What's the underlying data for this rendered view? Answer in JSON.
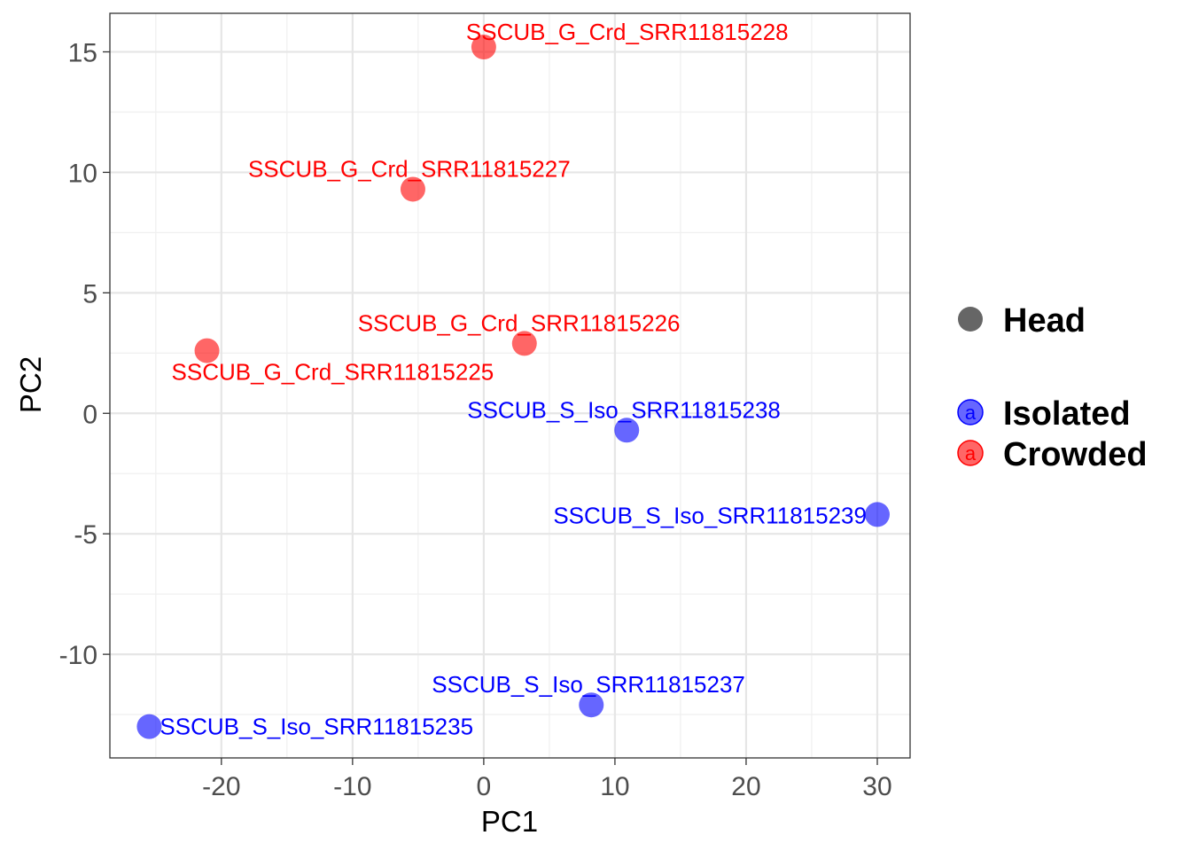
{
  "chart_data": {
    "type": "scatter",
    "xlabel": "PC1",
    "ylabel": "PC2",
    "xlim": [
      -28.5,
      32.5
    ],
    "ylim": [
      -14.3,
      16.6
    ],
    "x_ticks": [
      -20,
      -10,
      0,
      10,
      20,
      30
    ],
    "y_ticks": [
      -10,
      -5,
      0,
      5,
      10,
      15
    ],
    "x_tick_labels": [
      "-20",
      "-10",
      "0",
      "10",
      "20",
      "30"
    ],
    "y_tick_labels": [
      "-10",
      "-5",
      "0",
      "5",
      "10",
      "15"
    ],
    "grid": true,
    "legend_position": "right",
    "colors": {
      "Isolated": "#0000ff",
      "Crowded": "#ff0000",
      "Head": "#666666"
    },
    "legend": {
      "shape_title": "Head",
      "key_glyph": "a",
      "groups": [
        "Isolated",
        "Crowded"
      ]
    },
    "series": [
      {
        "name": "Crowded",
        "points": [
          {
            "label": "SSCUB_G_Crd_SRR11815228",
            "x": 0.0,
            "y": 15.2
          },
          {
            "label": "SSCUB_G_Crd_SRR11815227",
            "x": -5.4,
            "y": 9.3
          },
          {
            "label": "SSCUB_G_Crd_SRR11815226",
            "x": 3.1,
            "y": 2.9
          },
          {
            "label": "SSCUB_G_Crd_SRR11815225",
            "x": -21.1,
            "y": 2.6
          }
        ]
      },
      {
        "name": "Isolated",
        "points": [
          {
            "label": "SSCUB_S_Iso_SRR11815238",
            "x": 10.9,
            "y": -0.7
          },
          {
            "label": "SSCUB_S_Iso_SRR11815239",
            "x": 30.0,
            "y": -4.2
          },
          {
            "label": "SSCUB_S_Iso_SRR11815237",
            "x": 8.2,
            "y": -12.1
          },
          {
            "label": "SSCUB_S_Iso_SRR11815235",
            "x": -25.5,
            "y": -13.0
          }
        ]
      }
    ]
  }
}
